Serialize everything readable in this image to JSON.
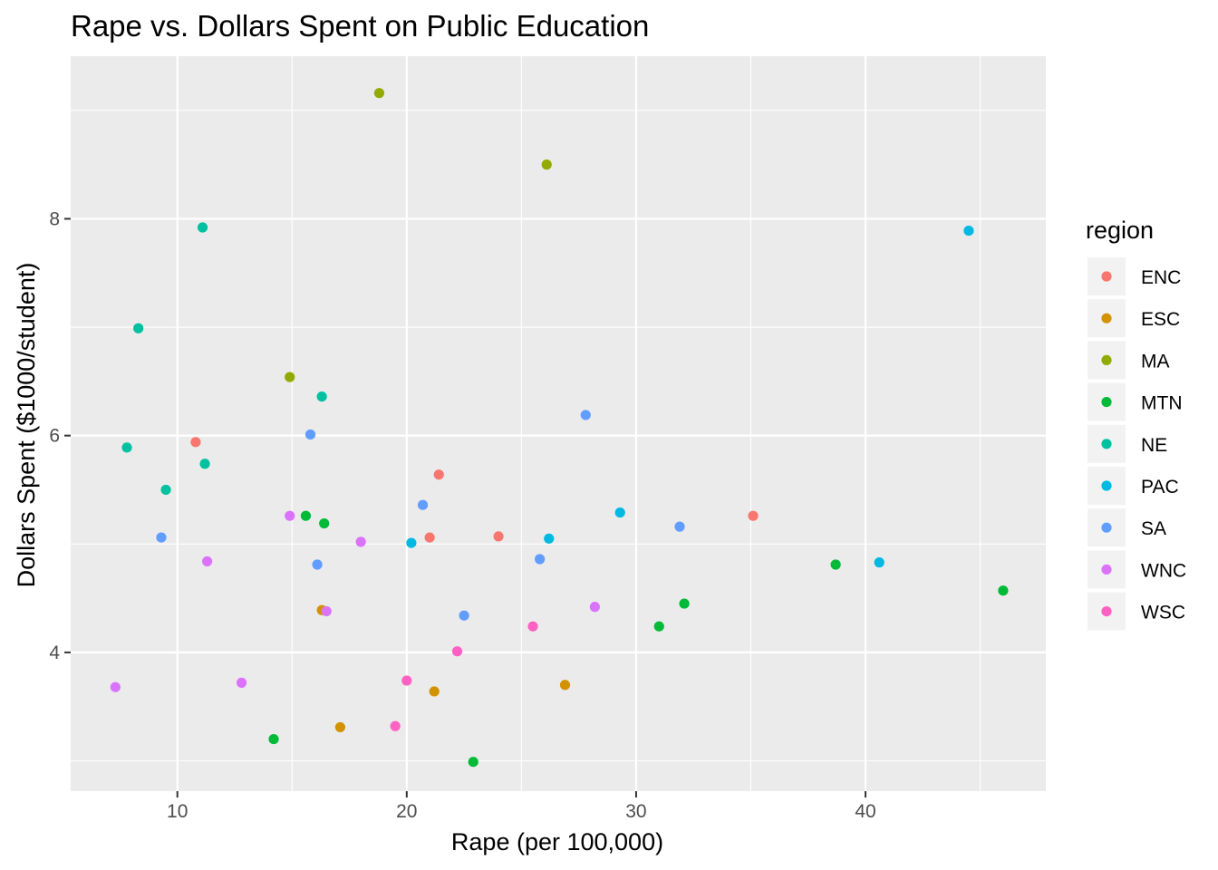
{
  "chart_data": {
    "type": "scatter",
    "title": "Rape vs. Dollars Spent on Public Education",
    "xlabel": "Rape (per 100,000)",
    "ylabel": "Dollars Spent ($1000/student)",
    "xlim": [
      5.35,
      47.86
    ],
    "ylim": [
      2.72,
      9.5
    ],
    "x_ticks": [
      10,
      20,
      30,
      40
    ],
    "y_ticks": [
      4,
      6,
      8
    ],
    "grid": true,
    "legend": {
      "title": "region",
      "placement": "right",
      "entries": [
        {
          "name": "ENC",
          "color": "#F8766D"
        },
        {
          "name": "ESC",
          "color": "#D39200"
        },
        {
          "name": "MA",
          "color": "#93AA00"
        },
        {
          "name": "MTN",
          "color": "#00BA38"
        },
        {
          "name": "NE",
          "color": "#00C19F"
        },
        {
          "name": "PAC",
          "color": "#00B9E3"
        },
        {
          "name": "SA",
          "color": "#619CFF"
        },
        {
          "name": "WNC",
          "color": "#DB72FB"
        },
        {
          "name": "WSC",
          "color": "#FF61C3"
        }
      ]
    },
    "series": [
      {
        "name": "ENC",
        "points": [
          [
            10.8,
            5.94
          ],
          [
            21.4,
            5.64
          ],
          [
            21.0,
            5.06
          ],
          [
            24.0,
            5.07
          ],
          [
            35.1,
            5.26
          ]
        ]
      },
      {
        "name": "ESC",
        "points": [
          [
            16.3,
            4.39
          ],
          [
            17.1,
            3.31
          ],
          [
            21.2,
            3.64
          ],
          [
            26.9,
            3.7
          ]
        ]
      },
      {
        "name": "MA",
        "points": [
          [
            18.8,
            9.16
          ],
          [
            26.1,
            8.5
          ],
          [
            14.9,
            6.54
          ]
        ]
      },
      {
        "name": "MTN",
        "points": [
          [
            15.6,
            5.26
          ],
          [
            16.4,
            5.19
          ],
          [
            14.2,
            3.2
          ],
          [
            22.9,
            2.99
          ],
          [
            31.0,
            4.24
          ],
          [
            32.1,
            4.45
          ],
          [
            38.7,
            4.81
          ],
          [
            46.0,
            4.57
          ]
        ]
      },
      {
        "name": "NE",
        "points": [
          [
            11.1,
            7.92
          ],
          [
            8.3,
            6.99
          ],
          [
            16.3,
            6.36
          ],
          [
            7.8,
            5.89
          ],
          [
            11.2,
            5.74
          ],
          [
            9.5,
            5.5
          ]
        ]
      },
      {
        "name": "PAC",
        "points": [
          [
            44.5,
            7.89
          ],
          [
            29.3,
            5.29
          ],
          [
            26.2,
            5.05
          ],
          [
            20.2,
            5.01
          ],
          [
            40.6,
            4.83
          ]
        ]
      },
      {
        "name": "SA",
        "points": [
          [
            27.8,
            6.19
          ],
          [
            15.8,
            6.01
          ],
          [
            20.7,
            5.36
          ],
          [
            31.9,
            5.16
          ],
          [
            9.3,
            5.06
          ],
          [
            25.8,
            4.86
          ],
          [
            16.1,
            4.81
          ],
          [
            22.5,
            4.34
          ]
        ]
      },
      {
        "name": "WNC",
        "points": [
          [
            14.9,
            5.26
          ],
          [
            18.0,
            5.02
          ],
          [
            11.3,
            4.84
          ],
          [
            16.5,
            4.38
          ],
          [
            28.2,
            4.42
          ],
          [
            12.8,
            3.72
          ],
          [
            7.3,
            3.68
          ]
        ]
      },
      {
        "name": "WSC",
        "points": [
          [
            25.5,
            4.24
          ],
          [
            22.2,
            4.01
          ],
          [
            20.0,
            3.74
          ],
          [
            19.5,
            3.32
          ]
        ]
      }
    ]
  }
}
